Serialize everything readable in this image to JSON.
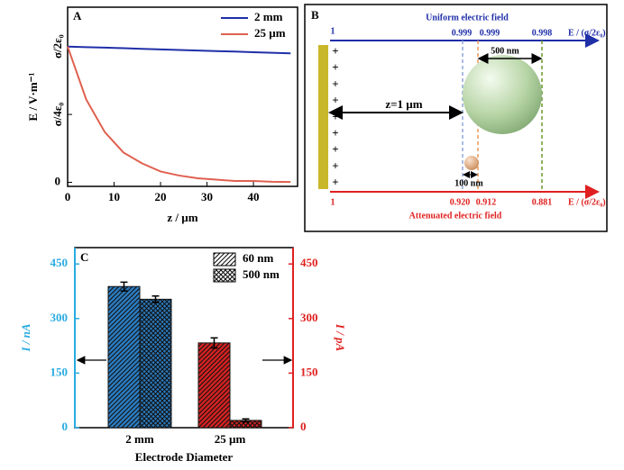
{
  "chart_data": [
    {
      "type": "line",
      "panel": "A",
      "xlabel": "z / µm",
      "ylabel": "E / V·m⁻¹",
      "x": [
        0,
        4,
        8,
        12,
        16,
        20,
        24,
        28,
        32,
        36,
        40,
        44,
        48
      ],
      "series": [
        {
          "name": "2 mm",
          "color": "#1f2fa8",
          "values": [
            1,
            0.996,
            0.992,
            0.988,
            0.983,
            0.979,
            0.975,
            0.971,
            0.967,
            0.963,
            0.958,
            0.954,
            0.95
          ]
        },
        {
          "name": "25 µm",
          "color": "#e0604f",
          "values": [
            1,
            0.61,
            0.37,
            0.22,
            0.14,
            0.08,
            0.05,
            0.03,
            0.02,
            0.01,
            0.01,
            0.004,
            0.002
          ]
        }
      ],
      "xlim": [
        0,
        49.5
      ],
      "xticks": [
        0,
        10,
        20,
        30,
        40
      ],
      "ylim": [
        -0.03,
        1.29
      ],
      "yticks": [
        0,
        {
          "value": 0.5,
          "label": "σ/4ε₀"
        },
        {
          "value": 1,
          "label": "σ/2ε₀"
        }
      ],
      "legend": "upper right",
      "grid": false
    },
    {
      "type": "bar",
      "panel": "C",
      "xlabel": "Electrode Diameter",
      "ylabel": "I / nA",
      "y2label": "I / pA",
      "categories": [
        "2 mm",
        "25 µm"
      ],
      "category_colors": [
        "#2b7cc0",
        "#d42222"
      ],
      "category_axis": [
        "y",
        "y2"
      ],
      "series": [
        {
          "name": "60 nm",
          "hatch": "diagonal",
          "values": [
            388,
            233
          ],
          "errors": [
            12,
            14
          ]
        },
        {
          "name": "500 nm",
          "hatch": "cross",
          "values": [
            353,
            20
          ],
          "errors": [
            9,
            4
          ]
        }
      ],
      "ylim": [
        0,
        495
      ],
      "yticks": [
        0,
        150,
        300,
        450
      ],
      "y2lim": [
        0,
        495
      ],
      "y2ticks": [
        0,
        150,
        300,
        450
      ],
      "ycolor": "#29abe2",
      "y2color": "#e02020",
      "legend": "upper right",
      "grid": false
    }
  ],
  "diagram": {
    "panel": "B",
    "top_title": "Uniform electric field",
    "bottom_title": "Attenuated electric field",
    "top_unit": "E / (σ/2ε₀)",
    "bottom_unit": "E / (σ/2ε₀)",
    "top_values": [
      "1",
      "0.999",
      "0.999",
      "0.998"
    ],
    "bottom_values": [
      "1",
      "0.920",
      "0.912",
      "0.881"
    ],
    "distance": "z=1 µm",
    "large_particle": "500 nm",
    "small_particle": "100 nm",
    "charges": [
      "+",
      "+",
      "+",
      "+",
      "+",
      "+",
      "+",
      "+",
      "+"
    ]
  }
}
